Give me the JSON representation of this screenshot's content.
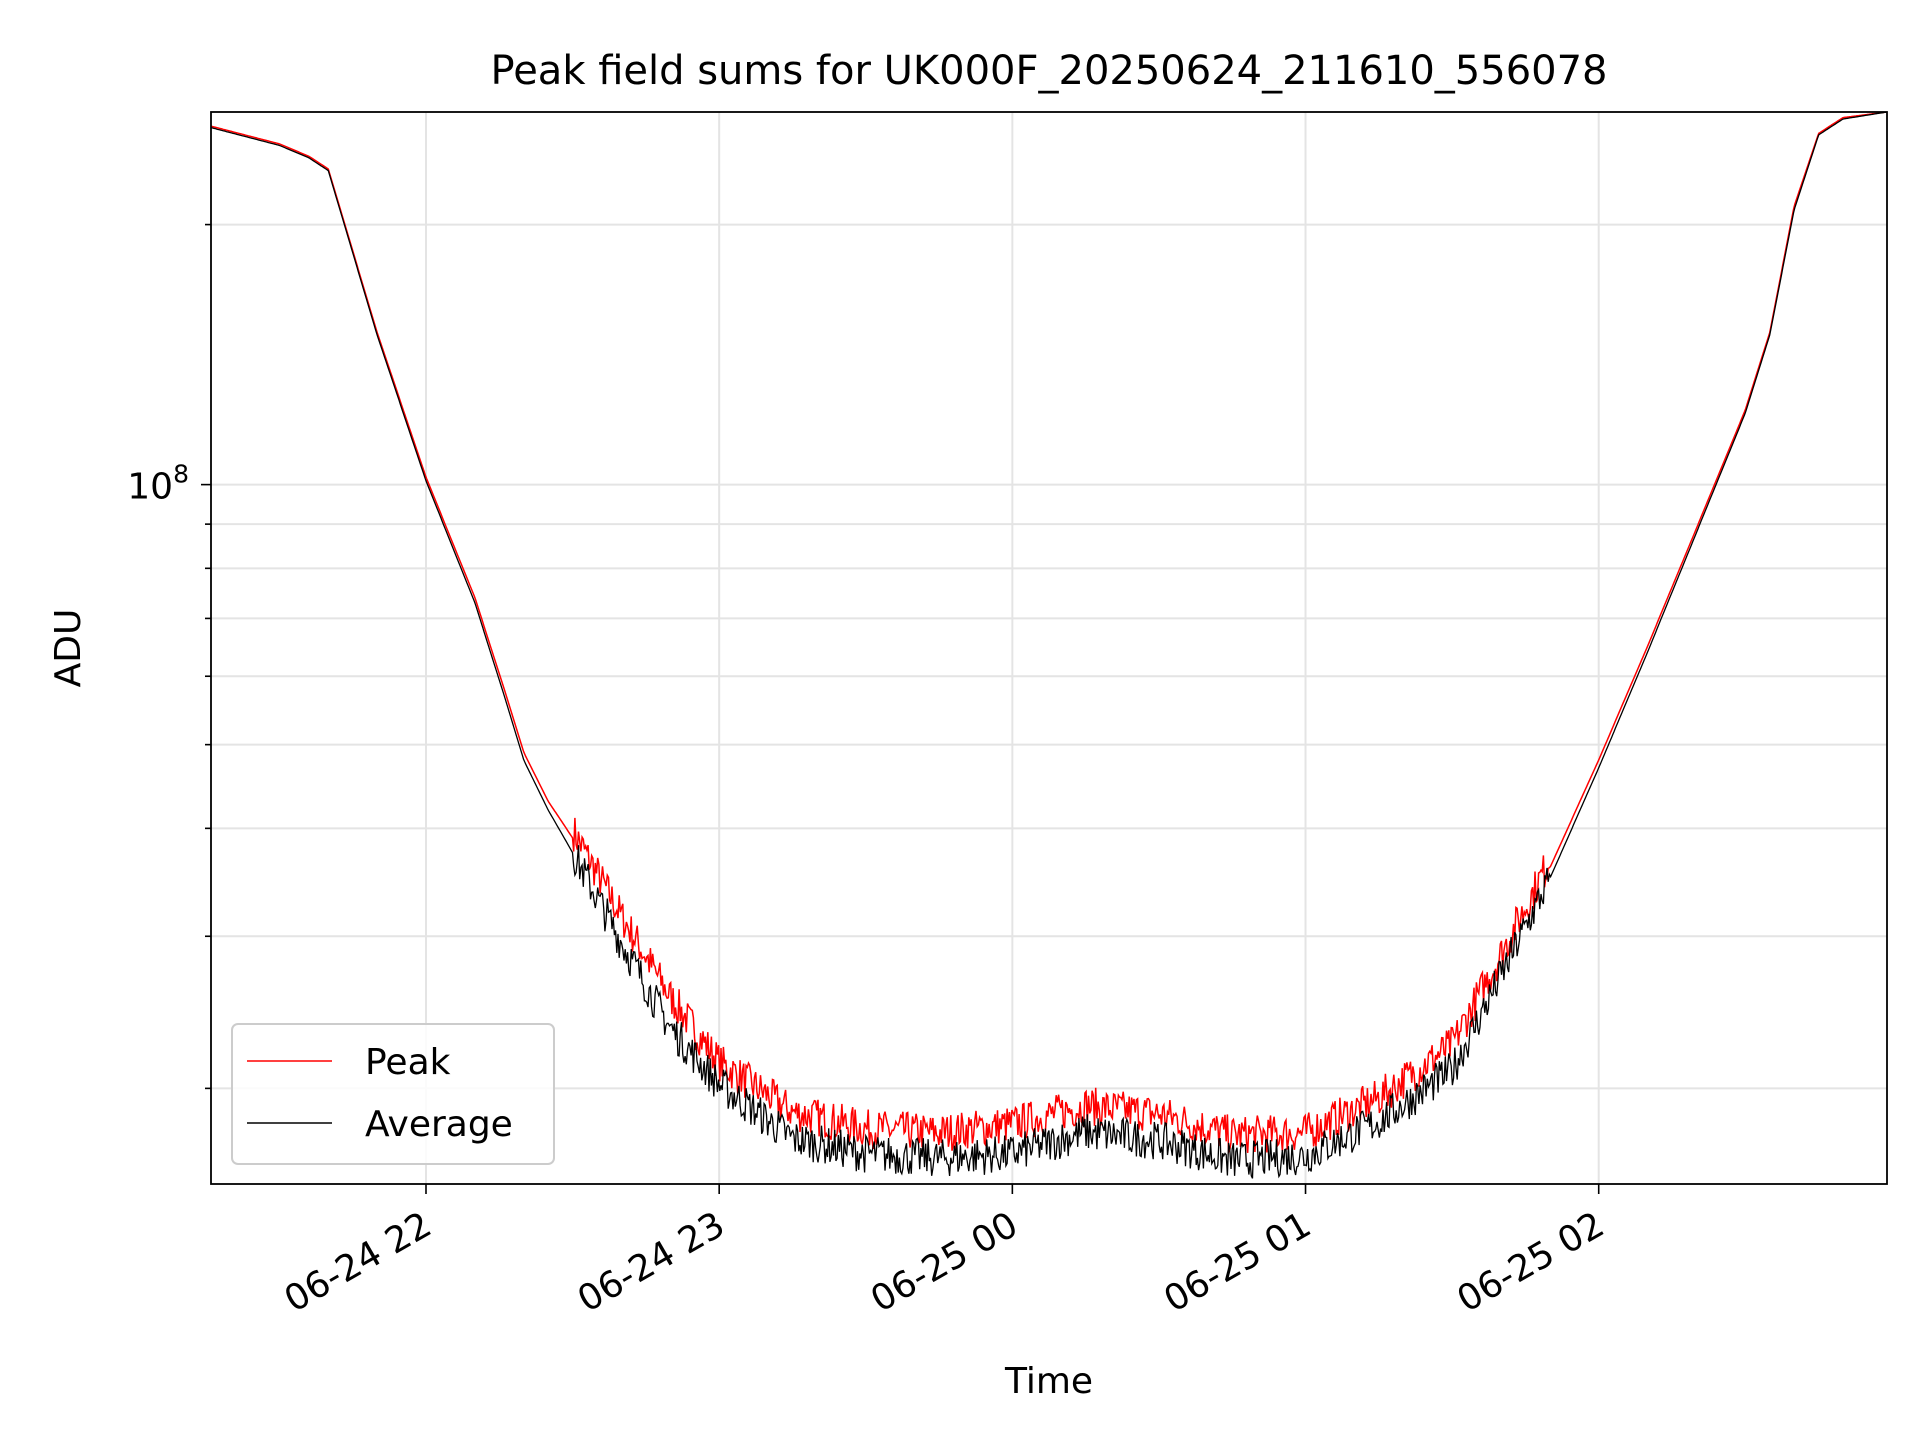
{
  "chart_data": {
    "type": "line",
    "title": "Peak field sums for UK000F_20250624_211610_556078",
    "xlabel": "Time",
    "ylabel": "ADU",
    "yscale": "log",
    "xlim": [
      "2025-06-24 21:16",
      "2025-06-25 02:59"
    ],
    "ylim": [
      15500000,
      270000000
    ],
    "x_ticks": [
      "06-24 22",
      "06-24 23",
      "06-25 00",
      "06-25 01",
      "06-25 02"
    ],
    "y_tick_label": "10^8",
    "grid": true,
    "legend": "lower left",
    "series": [
      {
        "name": "Peak",
        "color": "#ff0000",
        "x": [
          "2025-06-24 21:16",
          "2025-06-24 21:30",
          "2025-06-24 21:36",
          "2025-06-24 21:40",
          "2025-06-24 21:50",
          "2025-06-24 22:00",
          "2025-06-24 22:10",
          "2025-06-24 22:16",
          "2025-06-24 22:20",
          "2025-06-24 22:25",
          "2025-06-24 22:30",
          "2025-06-24 22:40",
          "2025-06-24 22:50",
          "2025-06-24 23:00",
          "2025-06-24 23:15",
          "2025-06-24 23:30",
          "2025-06-24 23:45",
          "2025-06-25 00:00",
          "2025-06-25 00:15",
          "2025-06-25 00:30",
          "2025-06-25 00:45",
          "2025-06-25 01:00",
          "2025-06-25 01:15",
          "2025-06-25 01:30",
          "2025-06-25 01:40",
          "2025-06-25 01:50",
          "2025-06-25 02:00",
          "2025-06-25 02:10",
          "2025-06-25 02:20",
          "2025-06-25 02:30",
          "2025-06-25 02:35",
          "2025-06-25 02:40",
          "2025-06-25 02:45",
          "2025-06-25 02:50",
          "2025-06-25 02:59"
        ],
        "y": [
          260000000,
          248000000,
          240000000,
          232000000,
          150000000,
          102000000,
          74000000,
          58000000,
          49000000,
          43000000,
          39000000,
          31000000,
          25000000,
          21000000,
          18400000,
          17600000,
          17400000,
          17800000,
          18700000,
          18300000,
          17300000,
          17400000,
          19100000,
          22000000,
          28000000,
          36000000,
          48000000,
          65000000,
          89000000,
          122000000,
          150000000,
          210000000,
          255000000,
          266000000,
          270000000
        ]
      },
      {
        "name": "Average",
        "color": "#000000",
        "x": [
          "2025-06-24 21:16",
          "2025-06-24 21:30",
          "2025-06-24 21:36",
          "2025-06-24 21:40",
          "2025-06-24 21:50",
          "2025-06-24 22:00",
          "2025-06-24 22:10",
          "2025-06-24 22:16",
          "2025-06-24 22:20",
          "2025-06-24 22:25",
          "2025-06-24 22:30",
          "2025-06-24 22:40",
          "2025-06-24 22:50",
          "2025-06-24 23:00",
          "2025-06-24 23:15",
          "2025-06-24 23:30",
          "2025-06-24 23:45",
          "2025-06-25 00:00",
          "2025-06-25 00:15",
          "2025-06-25 00:30",
          "2025-06-25 00:45",
          "2025-06-25 01:00",
          "2025-06-25 01:15",
          "2025-06-25 01:30",
          "2025-06-25 01:40",
          "2025-06-25 01:50",
          "2025-06-25 02:00",
          "2025-06-25 02:10",
          "2025-06-25 02:20",
          "2025-06-25 02:30",
          "2025-06-25 02:35",
          "2025-06-25 02:40",
          "2025-06-25 02:45",
          "2025-06-25 02:50",
          "2025-06-25 02:59"
        ],
        "y": [
          259000000,
          247000000,
          239000000,
          231000000,
          149000000,
          101000000,
          73000000,
          57000000,
          48000000,
          42000000,
          37500000,
          29500000,
          23500000,
          20200000,
          17500000,
          16800000,
          16600000,
          16800000,
          17800000,
          17400000,
          16500000,
          16700000,
          18300000,
          21000000,
          27000000,
          35000000,
          47000000,
          64000000,
          88000000,
          121000000,
          149000000,
          208000000,
          254000000,
          265000000,
          270000000
        ]
      }
    ]
  }
}
